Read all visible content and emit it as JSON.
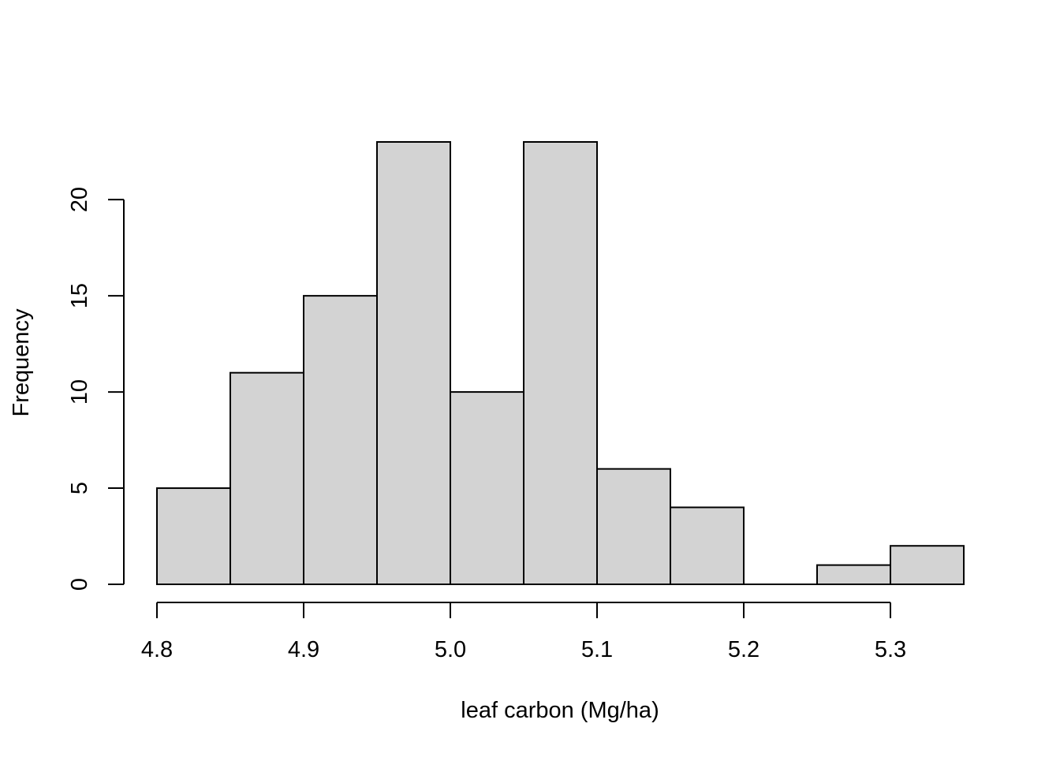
{
  "chart_data": {
    "type": "bar",
    "subtype": "histogram",
    "xlabel": "leaf carbon (Mg/ha)",
    "ylabel": "Frequency",
    "bins": [
      {
        "from": 4.8,
        "to": 4.85,
        "count": 5
      },
      {
        "from": 4.85,
        "to": 4.9,
        "count": 11
      },
      {
        "from": 4.9,
        "to": 4.95,
        "count": 15
      },
      {
        "from": 4.95,
        "to": 5.0,
        "count": 23
      },
      {
        "from": 5.0,
        "to": 5.05,
        "count": 10
      },
      {
        "from": 5.05,
        "to": 5.1,
        "count": 23
      },
      {
        "from": 5.1,
        "to": 5.15,
        "count": 6
      },
      {
        "from": 5.15,
        "to": 5.2,
        "count": 4
      },
      {
        "from": 5.2,
        "to": 5.25,
        "count": 0
      },
      {
        "from": 5.25,
        "to": 5.3,
        "count": 1
      },
      {
        "from": 5.3,
        "to": 5.35,
        "count": 2
      }
    ],
    "xlim": [
      4.8,
      5.35
    ],
    "ylim": [
      0,
      23
    ],
    "xticks": [
      {
        "value": 4.8,
        "label": "4.8"
      },
      {
        "value": 4.9,
        "label": "4.9"
      },
      {
        "value": 5.0,
        "label": "5.0"
      },
      {
        "value": 5.1,
        "label": "5.1"
      },
      {
        "value": 5.2,
        "label": "5.2"
      },
      {
        "value": 5.3,
        "label": "5.3"
      }
    ],
    "yticks": [
      {
        "value": 0,
        "label": "0"
      },
      {
        "value": 5,
        "label": "5"
      },
      {
        "value": 10,
        "label": "10"
      },
      {
        "value": 15,
        "label": "15"
      },
      {
        "value": 20,
        "label": "20"
      }
    ],
    "grid": false,
    "bar_fill": "#d3d3d3",
    "bar_stroke": "#000000"
  }
}
